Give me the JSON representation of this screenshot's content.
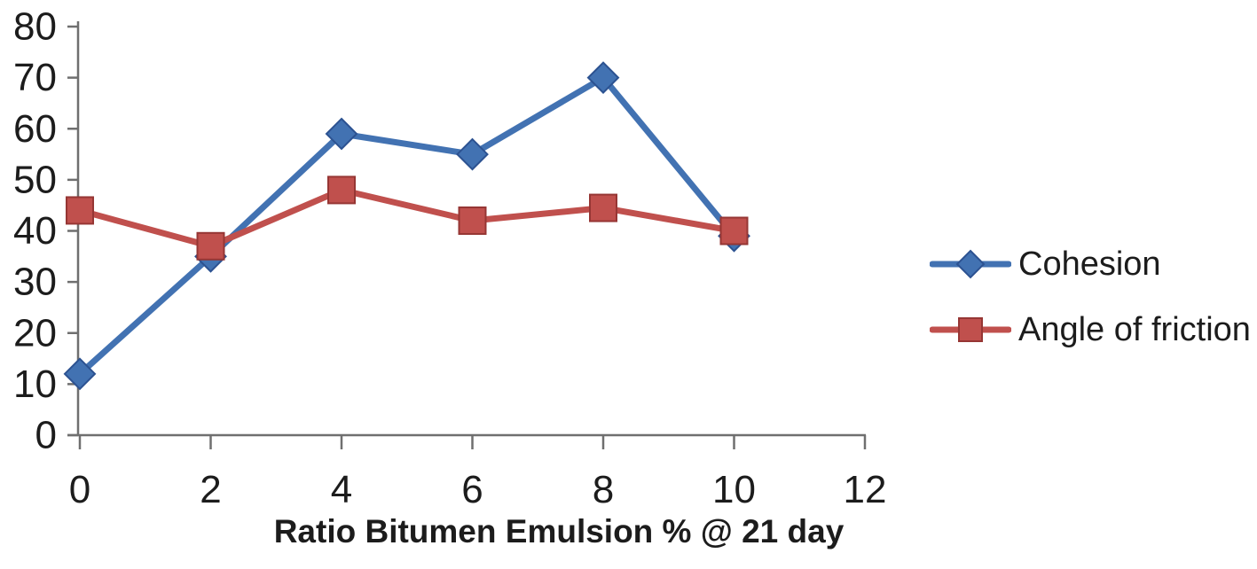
{
  "chart_data": {
    "type": "line",
    "title": "",
    "xlabel": "Ratio Bitumen Emulsion % @ 21 day",
    "ylabel": "",
    "x": [
      0,
      2,
      4,
      6,
      8,
      10
    ],
    "series": [
      {
        "name": "Cohesion",
        "values": [
          12,
          35,
          59,
          55,
          70,
          39
        ],
        "color": "#4272b2",
        "border_color": "#2c5291",
        "marker": "diamond"
      },
      {
        "name": "Angle of friction",
        "values": [
          44,
          37,
          48,
          42,
          44.5,
          40
        ],
        "color": "#c0504d",
        "border_color": "#963634",
        "marker": "square"
      }
    ],
    "xlim": [
      0,
      12
    ],
    "ylim": [
      0,
      80
    ],
    "x_ticks": [
      "0",
      "2",
      "4",
      "6",
      "8",
      "10",
      "12"
    ],
    "y_ticks": [
      "0",
      "10",
      "20",
      "30",
      "40",
      "50",
      "60",
      "70",
      "80"
    ],
    "grid": false,
    "legend_position": "right",
    "axis_color": "#6f6f6f",
    "text_color": "#1c1c1c"
  }
}
